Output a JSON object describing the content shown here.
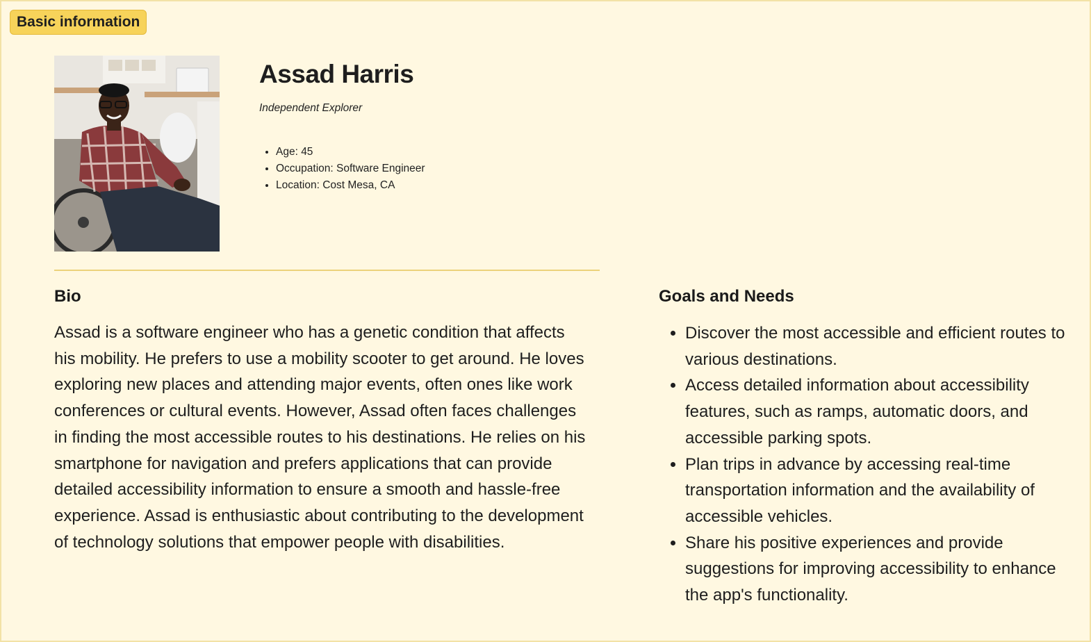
{
  "tag_label": "Basic information",
  "profile": {
    "name": "Assad Harris",
    "subtitle": "Independent Explorer",
    "facts": [
      "Age: 45",
      "Occupation: Software Engineer",
      "Location: Cost Mesa, CA"
    ]
  },
  "bio": {
    "title": "Bio",
    "text": "Assad is a software engineer who has a genetic condition that affects his mobility. He prefers to use a mobility scooter to get around. He loves exploring new places and attending major events, often ones like work conferences or cultural events. However, Assad often faces challenges in finding the most accessible routes to his destinations. He relies on his smartphone for navigation and prefers applications that can provide detailed accessibility information to ensure a smooth and hassle-free experience. Assad is enthusiastic about contributing to the development of technology solutions that empower people with disabilities."
  },
  "goals": {
    "title": "Goals and Needs",
    "items": [
      "Discover the most accessible and efficient routes to various destinations.",
      "Access detailed information about accessibility features, such as ramps, automatic doors, and accessible parking spots.",
      "Plan trips in advance by accessing real-time transportation information and the availability of accessible vehicles.",
      "Share his positive experiences and provide suggestions for improving accessibility to enhance the app's functionality."
    ]
  },
  "colors": {
    "background": "#fff8e1",
    "tag": "#f7d35a",
    "divider": "#ecd27a"
  }
}
